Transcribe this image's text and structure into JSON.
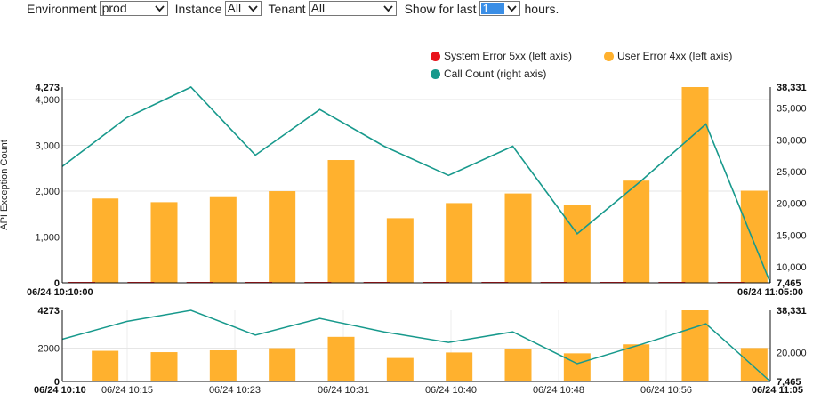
{
  "filters": {
    "environment": {
      "label": "Environment",
      "value": "prod"
    },
    "instance": {
      "label": "Instance",
      "value": "All"
    },
    "tenant": {
      "label": "Tenant",
      "value": "All"
    },
    "show_for_last": {
      "label": "Show for last",
      "value": "1",
      "suffix": "hours."
    }
  },
  "legend": [
    {
      "name": "System Error 5xx (left axis)",
      "color": "#e8141b"
    },
    {
      "name": "User Error 4xx (left axis)",
      "color": "#ffb12e"
    },
    {
      "name": "Call Count (right axis)",
      "color": "#17998c"
    }
  ],
  "chart_data": [
    {
      "type": "bar",
      "ylabel": "API Exception Count",
      "left_ticks": [
        "0",
        "1,000",
        "2,000",
        "3,000",
        "4,000"
      ],
      "left_max_label": "4,273",
      "right_ticks": [
        "10,000",
        "15,000",
        "20,000",
        "25,000",
        "30,000",
        "35,000"
      ],
      "right_min_label": "7,465",
      "right_max_label": "38,331",
      "x_start_label": "06/24 10:10:00",
      "x_end_label": "06/24 11:05:00",
      "ylim_left": [
        0,
        4273
      ],
      "ylim_right": [
        7465,
        38331
      ],
      "grid": true,
      "legend_position": "top-right",
      "series": [
        {
          "name": "System Error 5xx (left axis)",
          "axis": "left",
          "color": "#e8141b",
          "values": [
            5,
            5,
            5,
            5,
            5,
            5,
            5,
            5,
            5,
            5,
            5,
            5
          ]
        },
        {
          "name": "User Error 4xx (left axis)",
          "axis": "left",
          "color": "#ffb12e",
          "values": [
            1840,
            1760,
            1870,
            2000,
            2680,
            1410,
            1740,
            1950,
            1690,
            2230,
            4273,
            2010
          ]
        },
        {
          "name": "Call Count (right axis)",
          "axis": "right",
          "color": "#17998c",
          "values": [
            25800,
            33500,
            38331,
            27600,
            34800,
            29000,
            24400,
            29000,
            15200,
            23600,
            32500,
            7465
          ]
        }
      ]
    },
    {
      "type": "bar",
      "role": "navigator",
      "left_ticks": [
        "0",
        "2000"
      ],
      "left_max_label": "4273",
      "right_ticks": [
        "20,000"
      ],
      "right_min_label": "7,465",
      "right_max_label": "38,331",
      "x_tick_labels": [
        "06/24 10:10",
        "06/24 10:15",
        "06/24 10:23",
        "06/24 10:31",
        "06/24 10:40",
        "06/24 10:48",
        "06/24 10:56",
        "06/24 11:05"
      ],
      "ylim_left": [
        0,
        4273
      ],
      "ylim_right": [
        7465,
        38331
      ]
    }
  ]
}
